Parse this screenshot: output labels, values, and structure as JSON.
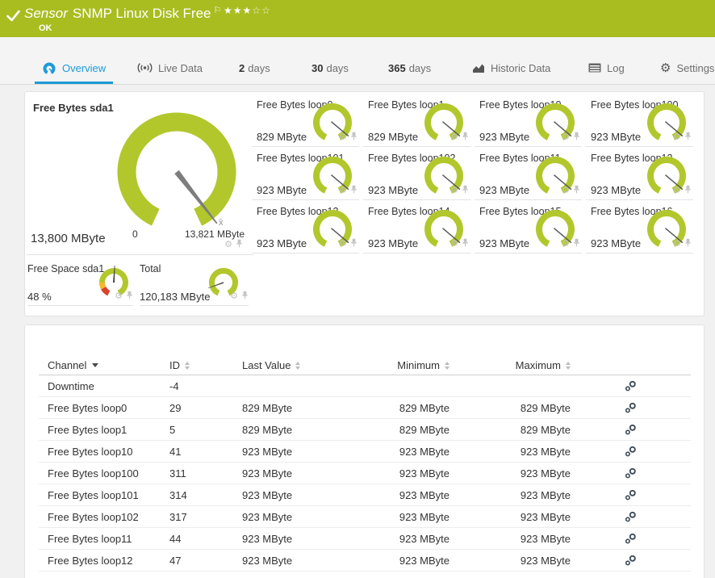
{
  "title_bar": {
    "kind": "Sensor",
    "name": "SNMP Linux Disk Free",
    "status": "OK",
    "rating": {
      "filled": 3,
      "empty": 2
    }
  },
  "tabs": [
    {
      "name": "tab-overview",
      "label": "Overview",
      "icon": "gauge-icon",
      "active": true
    },
    {
      "name": "tab-live-data",
      "label": "Live Data",
      "icon": "broadcast-icon"
    },
    {
      "name": "tab-2-days",
      "num": "2",
      "label": "days"
    },
    {
      "name": "tab-30-days",
      "num": "30",
      "label": "days"
    },
    {
      "name": "tab-365-days",
      "num": "365",
      "label": "days"
    },
    {
      "name": "tab-historic-data",
      "label": "Historic Data",
      "icon": "chart-icon"
    },
    {
      "name": "tab-log",
      "label": "Log",
      "icon": "log-icon"
    },
    {
      "name": "tab-settings",
      "label": "Settings",
      "icon": "gear-icon"
    }
  ],
  "main_gauge": {
    "title": "Free Bytes sda1",
    "value": "13,800 MByte",
    "scale_min": "0",
    "scale_max": "13,821 MByte",
    "avg_label": "x̄"
  },
  "small_gauges": [
    {
      "title": "Free Bytes loop0",
      "value": "829 MByte"
    },
    {
      "title": "Free Bytes loop1",
      "value": "829 MByte"
    },
    {
      "title": "Free Bytes loop10",
      "value": "923 MByte"
    },
    {
      "title": "Free Bytes loop100",
      "value": "923 MByte"
    },
    {
      "title": "Free Bytes loop101",
      "value": "923 MByte"
    },
    {
      "title": "Free Bytes loop102",
      "value": "923 MByte"
    },
    {
      "title": "Free Bytes loop11",
      "value": "923 MByte"
    },
    {
      "title": "Free Bytes loop12",
      "value": "923 MByte"
    },
    {
      "title": "Free Bytes loop13",
      "value": "923 MByte"
    },
    {
      "title": "Free Bytes loop14",
      "value": "923 MByte"
    },
    {
      "title": "Free Bytes loop15",
      "value": "923 MByte"
    },
    {
      "title": "Free Bytes loop16",
      "value": "923 MByte"
    }
  ],
  "footer_gauges": [
    {
      "title": "Free Space sda1",
      "value": "48 %"
    },
    {
      "title": "Total",
      "value": "120,183 MByte"
    }
  ],
  "table": {
    "columns": [
      "Channel",
      "ID",
      "Last Value",
      "Minimum",
      "Maximum"
    ],
    "rows": [
      {
        "channel": "Downtime",
        "id": "-4",
        "last": "",
        "min": "",
        "max": ""
      },
      {
        "channel": "Free Bytes loop0",
        "id": "29",
        "last": "829 MByte",
        "min": "829 MByte",
        "max": "829 MByte"
      },
      {
        "channel": "Free Bytes loop1",
        "id": "5",
        "last": "829 MByte",
        "min": "829 MByte",
        "max": "829 MByte"
      },
      {
        "channel": "Free Bytes loop10",
        "id": "41",
        "last": "923 MByte",
        "min": "923 MByte",
        "max": "923 MByte"
      },
      {
        "channel": "Free Bytes loop100",
        "id": "311",
        "last": "923 MByte",
        "min": "923 MByte",
        "max": "923 MByte"
      },
      {
        "channel": "Free Bytes loop101",
        "id": "314",
        "last": "923 MByte",
        "min": "923 MByte",
        "max": "923 MByte"
      },
      {
        "channel": "Free Bytes loop102",
        "id": "317",
        "last": "923 MByte",
        "min": "923 MByte",
        "max": "923 MByte"
      },
      {
        "channel": "Free Bytes loop11",
        "id": "44",
        "last": "923 MByte",
        "min": "923 MByte",
        "max": "923 MByte"
      },
      {
        "channel": "Free Bytes loop12",
        "id": "47",
        "last": "923 MByte",
        "min": "923 MByte",
        "max": "923 MByte"
      }
    ]
  },
  "colors": {
    "header_green": "#a9bd20",
    "gauge_green": "#b2c72c",
    "accent_blue": "#1e9ad6",
    "alert_red": "#d8432a",
    "warning_yellow": "#f6b82c"
  }
}
